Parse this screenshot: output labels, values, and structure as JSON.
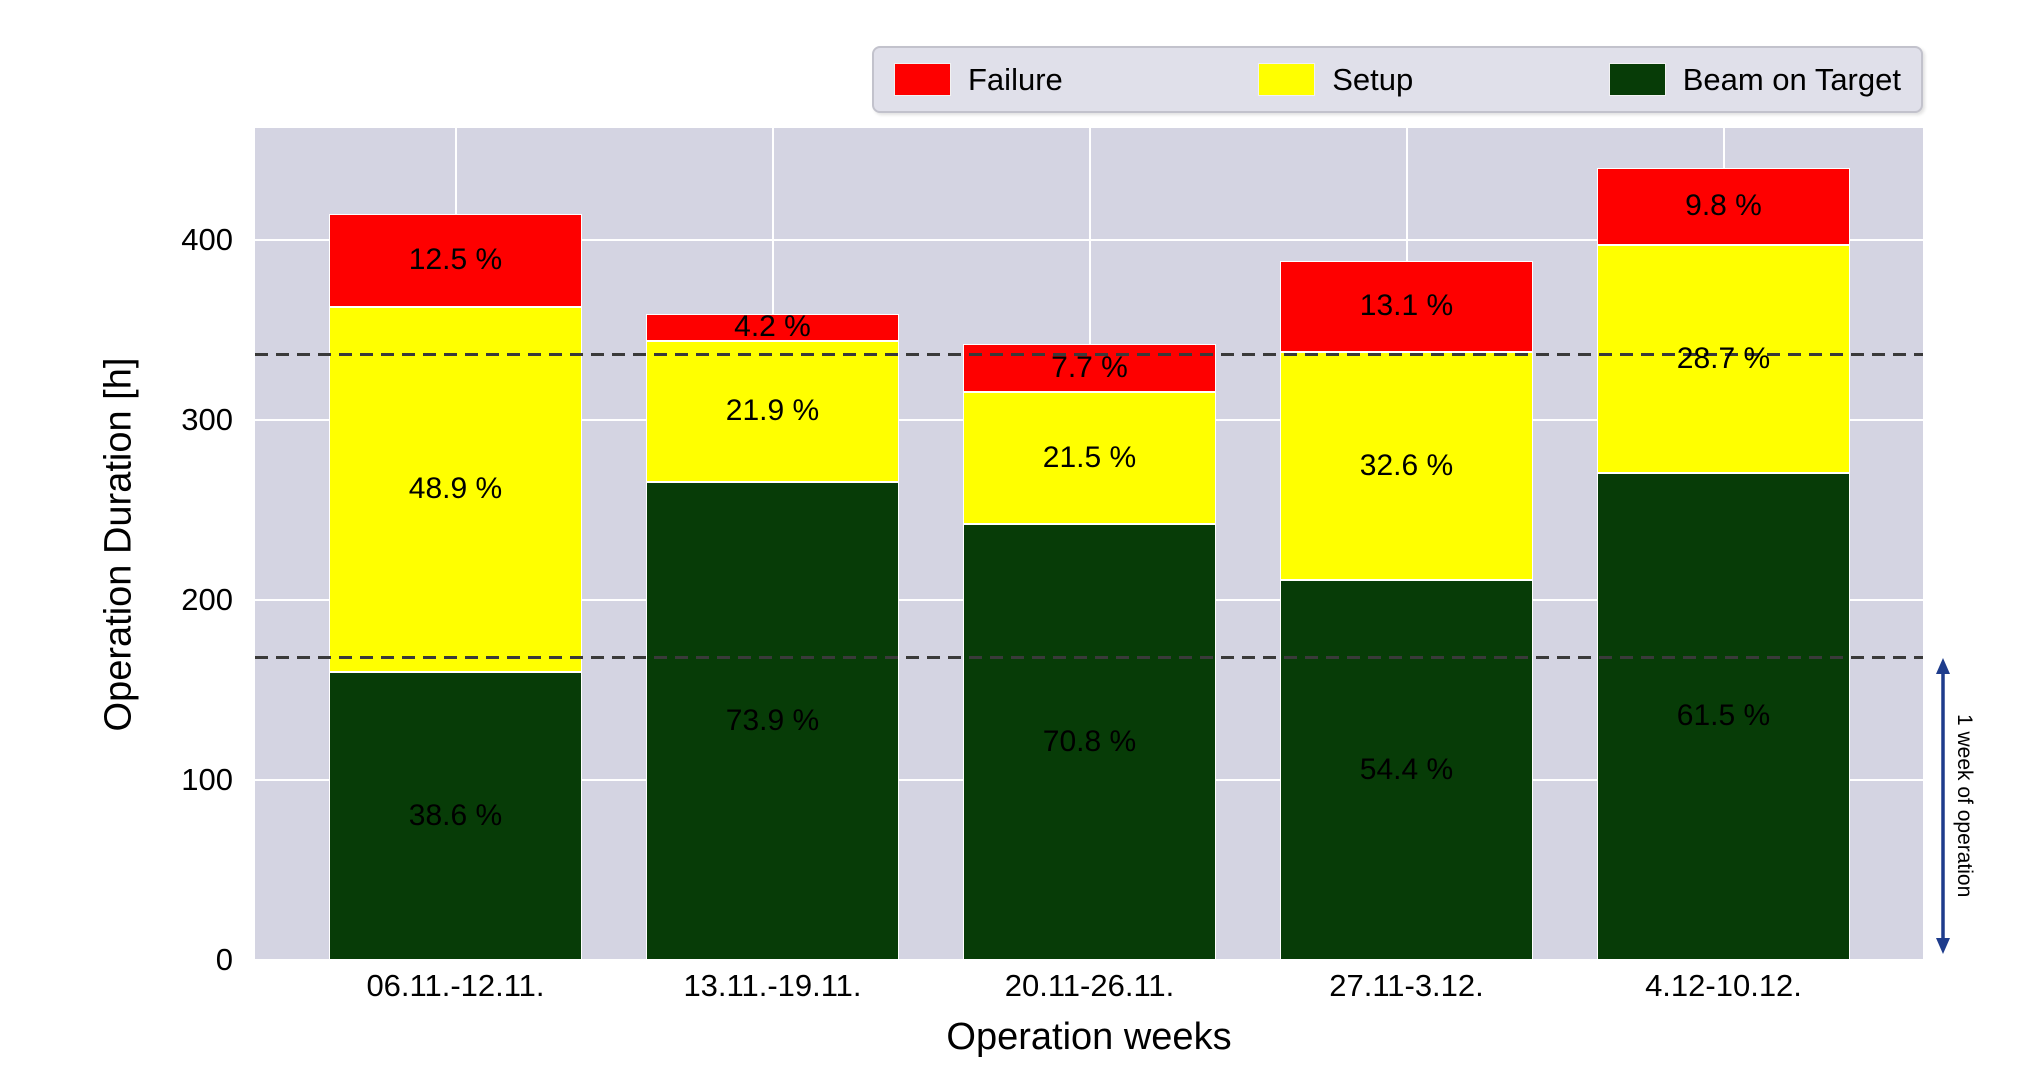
{
  "figure": {
    "background": "#ffffff",
    "plot_background": "#d4d4e2",
    "grid_color": "#ffffff"
  },
  "axes": {
    "y_title": "Operation Duration [h]",
    "x_title": "Operation weeks",
    "y_ticks": [
      0,
      100,
      200,
      300,
      400
    ],
    "ylim": [
      0,
      462
    ]
  },
  "legend": {
    "entries": [
      {
        "label": "Failure",
        "color": "#fe0000"
      },
      {
        "label": "Setup",
        "color": "#ffff00"
      },
      {
        "label": "Beam on Target",
        "color": "#073c07"
      }
    ]
  },
  "reference_lines": {
    "values_h": [
      168,
      336
    ],
    "color": "#3a3a3a",
    "style": "dashed"
  },
  "annotation": {
    "text": "1 week of operation",
    "arrow_color": "#1e3c8c",
    "span_h": [
      0,
      168
    ]
  },
  "chart_data": {
    "type": "bar",
    "stacked": true,
    "title": "",
    "xlabel": "Operation weeks",
    "ylabel": "Operation Duration [h]",
    "ylim": [
      0,
      462
    ],
    "grid": true,
    "legend_position": "top",
    "categories": [
      "06.11.-12.11.",
      "13.11.-19.11.",
      "20.11-26.11.",
      "27.11-3.12.",
      "4.12-10.12."
    ],
    "totals_h": [
      414.5,
      359.0,
      341.9,
      388.4,
      440.0
    ],
    "series": [
      {
        "name": "Beam on Target",
        "color": "#073c07",
        "values_h": [
          160.0,
          265.3,
          242.1,
          211.1,
          270.6
        ],
        "labels": [
          "38.6 %",
          "73.9 %",
          "70.8 %",
          "54.4 %",
          "61.5 %"
        ]
      },
      {
        "name": "Setup",
        "color": "#ffff00",
        "values_h": [
          202.7,
          78.6,
          73.5,
          126.5,
          126.3
        ],
        "labels": [
          "48.9 %",
          "21.9 %",
          "21.5 %",
          "32.6 %",
          "28.7 %"
        ]
      },
      {
        "name": "Failure",
        "color": "#fe0000",
        "values_h": [
          51.8,
          15.1,
          26.3,
          50.8,
          43.1
        ],
        "labels": [
          "12.5 %",
          "4.2 %",
          "7.7 %",
          "13.1 %",
          "9.8 %"
        ]
      }
    ]
  }
}
